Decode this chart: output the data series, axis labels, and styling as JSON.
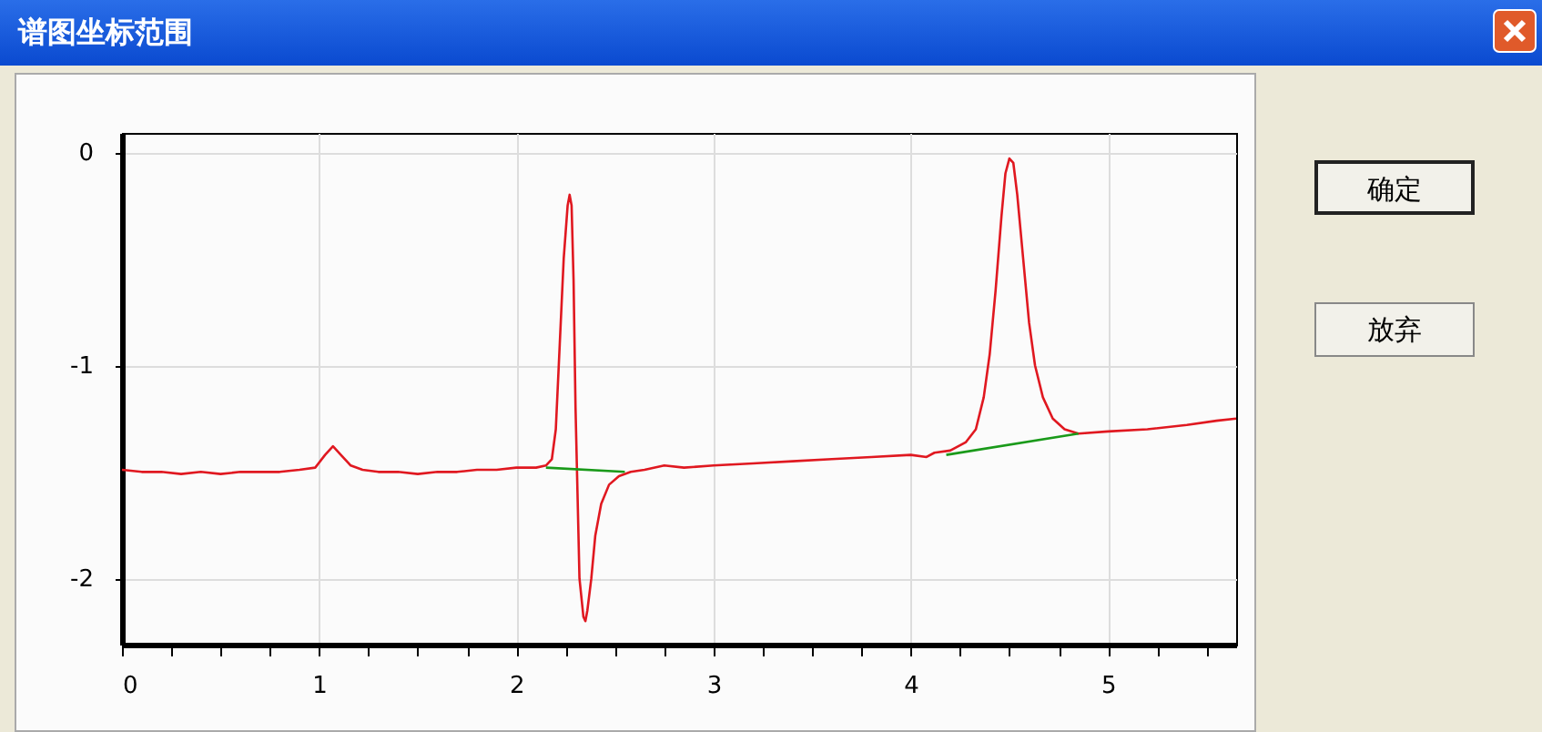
{
  "chart_data": {
    "type": "line",
    "title": "谱图坐标范围",
    "xlim": [
      0,
      5.65
    ],
    "ylim": [
      -2.31,
      0.09
    ],
    "xticks": [
      0,
      {
        "value": 0.25,
        "label": null
      },
      {
        "value": 0.5,
        "label": null
      },
      {
        "value": 0.75,
        "label": null
      },
      1,
      {
        "value": 1.25,
        "label": null
      },
      {
        "value": 1.5,
        "label": null
      },
      {
        "value": 1.75,
        "label": null
      },
      2,
      {
        "value": 2.25,
        "label": null
      },
      {
        "value": 2.5,
        "label": null
      },
      {
        "value": 2.75,
        "label": null
      },
      3,
      {
        "value": 3.25,
        "label": null
      },
      {
        "value": 3.5,
        "label": null
      },
      {
        "value": 3.75,
        "label": null
      },
      4,
      {
        "value": 4.25,
        "label": null
      },
      {
        "value": 4.5,
        "label": null
      },
      {
        "value": 4.75,
        "label": null
      },
      5,
      {
        "value": 5.25,
        "label": null
      },
      {
        "value": 5.5,
        "label": null
      }
    ],
    "yticks": [
      -2,
      -1,
      0
    ],
    "grid": true,
    "legend": false,
    "marker": "none",
    "line_style": "solid",
    "annotations": [
      "确定",
      "放弃"
    ],
    "series": [
      {
        "color": "#e01820",
        "x": [
          0,
          0.1,
          0.2,
          0.3,
          0.4,
          0.5,
          0.6,
          0.7,
          0.8,
          0.9,
          0.98,
          1.03,
          1.07,
          1.11,
          1.16,
          1.22,
          1.3,
          1.4,
          1.5,
          1.6,
          1.7,
          1.8,
          1.9,
          2.0,
          2.1,
          2.15,
          2.18,
          2.2,
          2.22,
          2.24,
          2.26,
          2.27,
          2.28,
          2.29,
          2.3,
          2.31,
          2.32,
          2.34,
          2.35,
          2.36,
          2.38,
          2.4,
          2.43,
          2.47,
          2.52,
          2.58,
          2.65,
          2.75,
          2.85,
          3.0,
          3.2,
          3.4,
          3.6,
          3.8,
          4.0,
          4.08,
          4.12,
          4.2,
          4.28,
          4.33,
          4.37,
          4.4,
          4.43,
          4.46,
          4.48,
          4.5,
          4.52,
          4.54,
          4.57,
          4.6,
          4.63,
          4.67,
          4.72,
          4.78,
          4.85,
          5.0,
          5.2,
          5.4,
          5.55,
          5.65
        ],
        "values": [
          -1.49,
          -1.5,
          -1.5,
          -1.51,
          -1.5,
          -1.51,
          -1.5,
          -1.5,
          -1.5,
          -1.49,
          -1.48,
          -1.42,
          -1.38,
          -1.42,
          -1.47,
          -1.49,
          -1.5,
          -1.5,
          -1.51,
          -1.5,
          -1.5,
          -1.49,
          -1.49,
          -1.48,
          -1.48,
          -1.47,
          -1.44,
          -1.3,
          -0.9,
          -0.5,
          -0.25,
          -0.2,
          -0.25,
          -0.6,
          -1.2,
          -1.6,
          -2.0,
          -2.18,
          -2.2,
          -2.15,
          -2.0,
          -1.8,
          -1.65,
          -1.56,
          -1.52,
          -1.5,
          -1.49,
          -1.47,
          -1.48,
          -1.47,
          -1.46,
          -1.45,
          -1.44,
          -1.43,
          -1.42,
          -1.43,
          -1.41,
          -1.4,
          -1.36,
          -1.3,
          -1.15,
          -0.95,
          -0.65,
          -0.3,
          -0.1,
          -0.03,
          -0.05,
          -0.2,
          -0.5,
          -0.8,
          -1.0,
          -1.15,
          -1.25,
          -1.3,
          -1.32,
          -1.31,
          -1.3,
          -1.28,
          -1.26,
          -1.25
        ]
      },
      {
        "color": "#1a9a1a",
        "x": [
          2.15,
          2.55
        ],
        "values": [
          -1.48,
          -1.5
        ]
      },
      {
        "color": "#1a9a1a",
        "x": [
          4.18,
          4.85
        ],
        "values": [
          -1.42,
          -1.32
        ]
      }
    ]
  }
}
